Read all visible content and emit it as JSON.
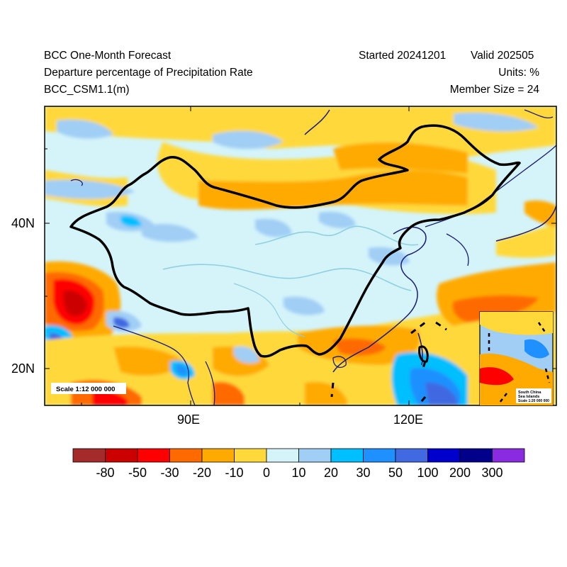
{
  "header": {
    "title": "BCC One-Month Forecast",
    "subtitle": "Departure percentage of Precipitation Rate",
    "model": "BCC_CSM1.1(m)",
    "started": "Started 20241201",
    "valid": "Valid 202505",
    "units": "Units: %",
    "member_size": "Member Size = 24"
  },
  "map": {
    "lat_labels": [
      "40N",
      "20N"
    ],
    "lon_labels": [
      "90E",
      "120E"
    ],
    "scale_label": "Scale 1:12 000 000",
    "inset": {
      "title_line1": "South China",
      "title_line2": "Sea Islands",
      "scale": "Scale 1:20 000 000"
    },
    "colors": {
      "border": "#000000",
      "coast": "#1a1a7a",
      "river": "#8fd0e0"
    }
  },
  "colorbar": {
    "labels": [
      "-80",
      "-50",
      "-30",
      "-20",
      "-10",
      "0",
      "10",
      "20",
      "30",
      "50",
      "100",
      "200",
      "300"
    ],
    "colors": [
      "#a52a2a",
      "#cd0000",
      "#ff0000",
      "#ff6a00",
      "#ffaa00",
      "#ffd93a",
      "#d4f4fa",
      "#a0cef5",
      "#00bfff",
      "#1e90ff",
      "#4169e1",
      "#0000cd",
      "#00008b",
      "#8a2be2"
    ]
  }
}
